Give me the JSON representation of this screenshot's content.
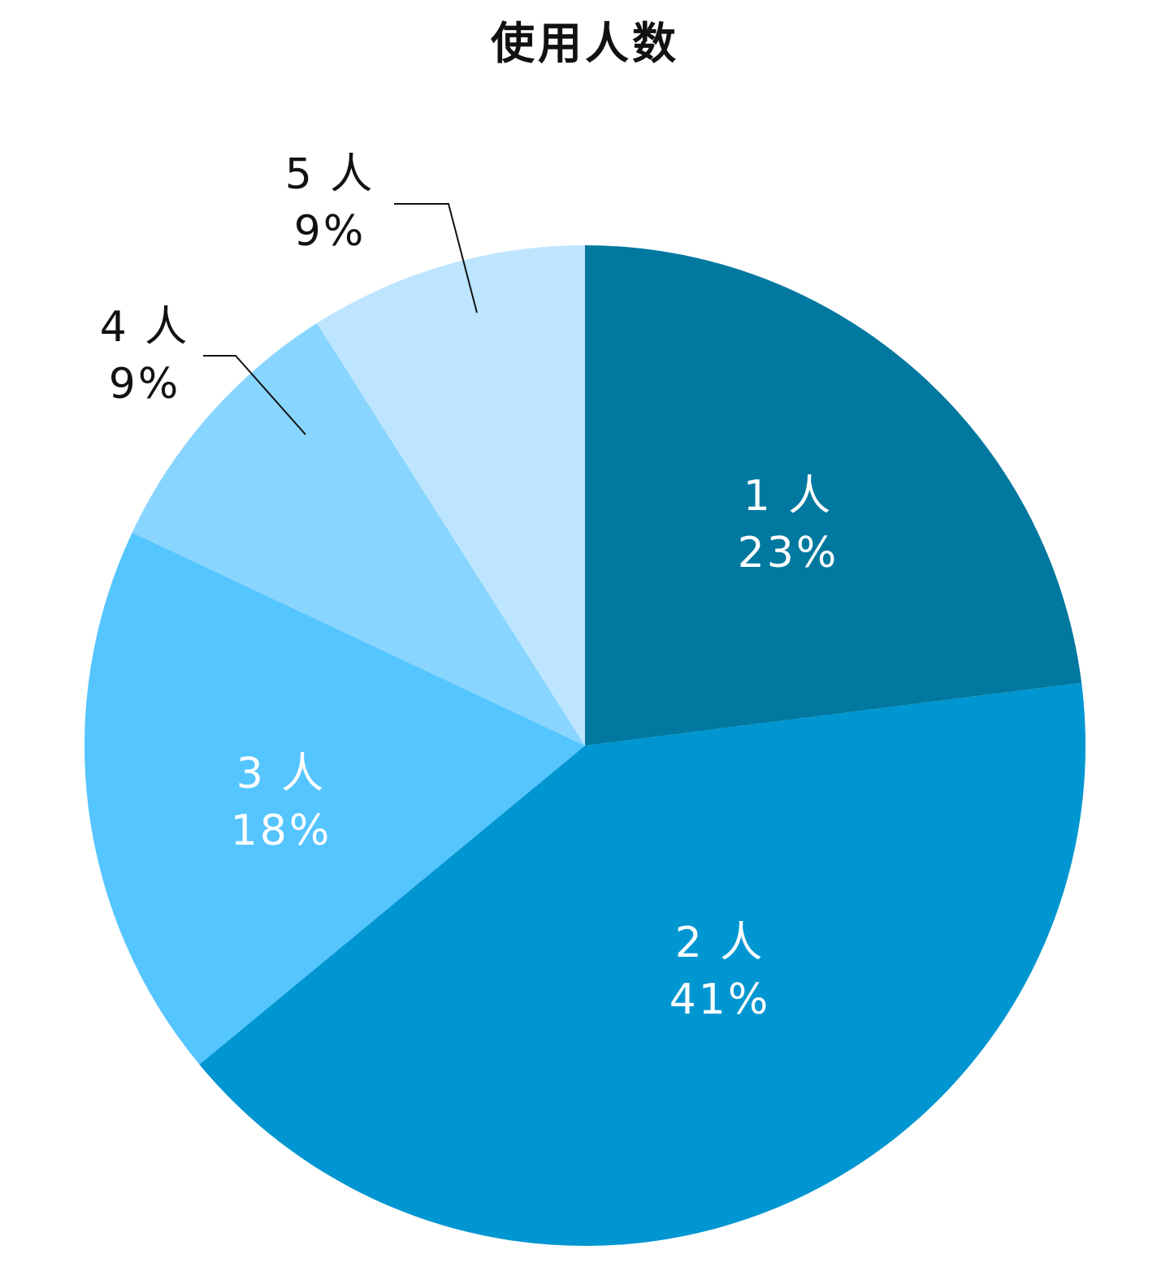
{
  "chart_data": {
    "type": "pie",
    "title": "使用人数",
    "start_angle_deg": 0,
    "direction": "clockwise",
    "slices": [
      {
        "label": "1 人",
        "value": 23,
        "value_label": "23%",
        "color": "#00789F",
        "text_color": "#ffffff",
        "label_position": "inside"
      },
      {
        "label": "2 人",
        "value": 41,
        "value_label": "41%",
        "color": "#0096D1",
        "text_color": "#ffffff",
        "label_position": "inside"
      },
      {
        "label": "3 人",
        "value": 18,
        "value_label": "18%",
        "color": "#55C5FF",
        "text_color": "#ffffff",
        "label_position": "inside"
      },
      {
        "label": "4 人",
        "value": 9,
        "value_label": "9%",
        "color": "#88D5FF",
        "text_color": "#111111",
        "label_position": "outside"
      },
      {
        "label": "5 人",
        "value": 9,
        "value_label": "9%",
        "color": "#BDE5FF",
        "text_color": "#111111",
        "label_position": "outside"
      }
    ]
  }
}
